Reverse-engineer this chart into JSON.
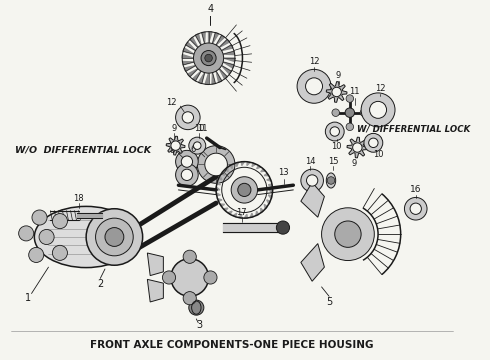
{
  "title": "FRONT AXLE COMPONENTS-ONE PIECE HOUSING",
  "title_fontsize": 7.5,
  "title_fontweight": "bold",
  "label_wo": "W/O  DIFFERENTIAL LOCK",
  "label_w": "W/ DIFFERENTIAL LOCK",
  "bg_color": "#f5f5f0",
  "line_color": "#1a1a1a",
  "figsize": [
    4.9,
    3.6
  ],
  "dpi": 100,
  "border_color": "#cccccc"
}
